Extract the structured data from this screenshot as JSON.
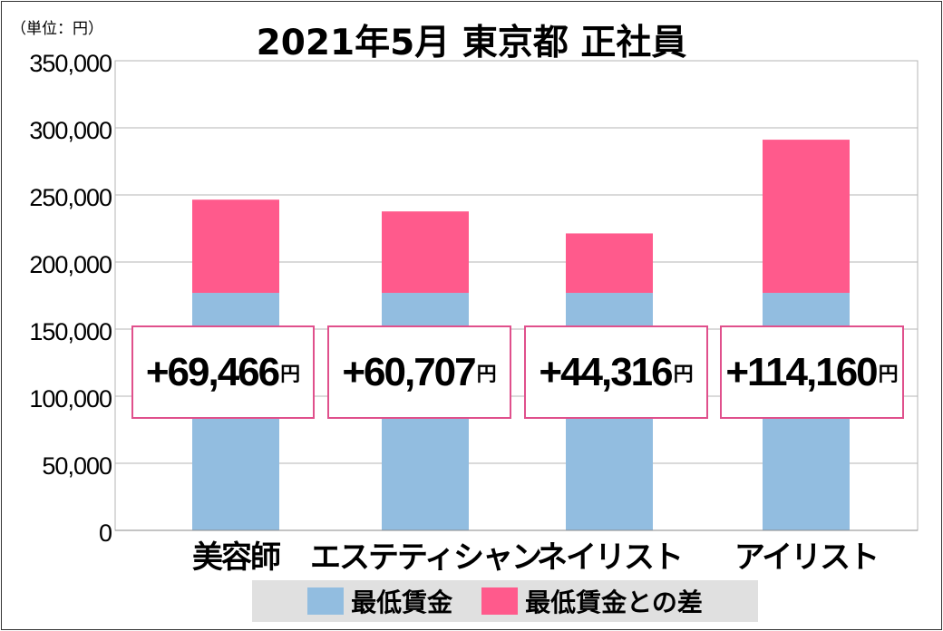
{
  "unit_label": "（単位：円）",
  "title": "2021年5月 東京都 正社員",
  "currency_suffix": "円",
  "colors": {
    "base": "#92bde0",
    "diff": "#ff5a8c",
    "box_border": "#e0508c",
    "grid": "#b4b4b4"
  },
  "chart_data": {
    "type": "bar",
    "stacked": true,
    "title": "2021年5月 東京都 正社員",
    "ylabel": "",
    "ylim": [
      0,
      350000
    ],
    "yticks": [
      0,
      50000,
      100000,
      150000,
      200000,
      250000,
      300000,
      350000
    ],
    "ytick_labels": [
      "0",
      "50,000",
      "100,000",
      "150,000",
      "200,000",
      "250,000",
      "300,000",
      "350,000"
    ],
    "grid": true,
    "categories": [
      "美容師",
      "エステティシャン",
      "ネイリスト",
      "アイリスト"
    ],
    "series": [
      {
        "name": "最低賃金",
        "values": [
          177000,
          177000,
          177000,
          177000
        ]
      },
      {
        "name": "最低賃金との差",
        "values": [
          69466,
          60707,
          44316,
          114160
        ]
      }
    ],
    "annotations": [
      "+69,466",
      "+60,707",
      "+44,316",
      "+114,160"
    ],
    "legend_position": "bottom"
  },
  "legend": [
    {
      "label": "最低賃金",
      "color": "#92bde0"
    },
    {
      "label": "最低賃金との差",
      "color": "#ff5a8c"
    }
  ]
}
